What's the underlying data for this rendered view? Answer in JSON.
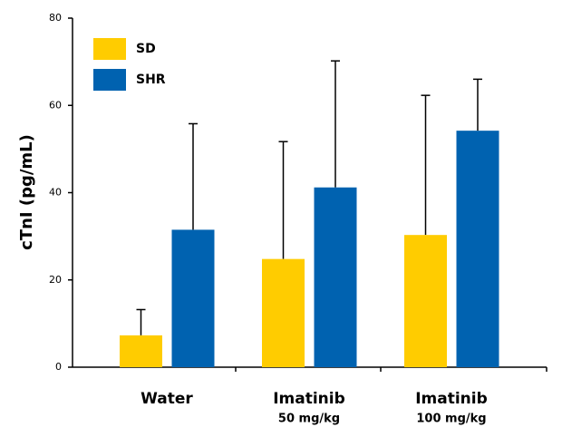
{
  "chart_data": {
    "type": "bar",
    "y_label": "cTnI (pg/mL)",
    "categories": [
      "Water",
      "Imatinib",
      "Imatinib"
    ],
    "category_sublabels": [
      null,
      "50 mg/kg",
      "100 mg/kg"
    ],
    "series": [
      {
        "name": "SD",
        "color": "#FFCC00",
        "values": [
          7.3,
          24.8,
          30.3
        ],
        "errors": [
          5.9,
          26.9,
          32.0
        ]
      },
      {
        "name": "SHR",
        "color": "#0062B0",
        "values": [
          31.5,
          41.2,
          54.2
        ],
        "errors": [
          24.3,
          29.0,
          11.8
        ]
      }
    ],
    "ylim": [
      0,
      80
    ],
    "yticks": [
      0,
      20,
      40,
      60,
      80
    ],
    "grid": false,
    "legend": "upper-left"
  }
}
